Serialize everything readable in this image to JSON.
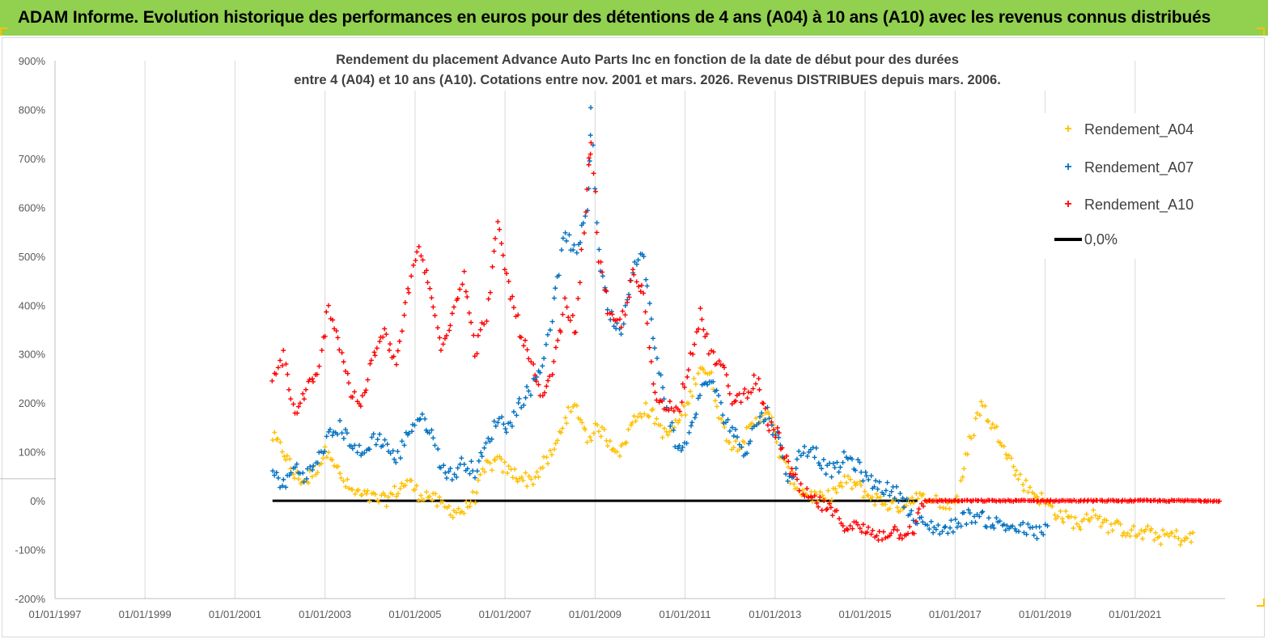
{
  "banner": {
    "title": "ADAM Informe. Evolution historique des performances en euros pour des détentions de 4 ans (A04) à 10 ans (A10) avec les revenus connus distribués"
  },
  "colors": {
    "banner": "#92d050",
    "A04": "#ffc000",
    "A07": "#0070c0",
    "A10": "#ff0000",
    "zero_line": "#000000"
  },
  "chart_data": {
    "type": "scatter",
    "title_line1": "Rendement du placement Advance Auto Parts Inc en fonction de la date de début pour des durées",
    "title_line2": "entre 4 (A04) et 10 ans (A10). Cotations entre nov. 2001 et mars. 2026. Revenus DISTRIBUES depuis mars. 2006.",
    "xlim": [
      "1997-01-01",
      "2023-01-01"
    ],
    "ylim": [
      -200,
      900
    ],
    "y_unit": "%",
    "y_ticks": [
      "900%",
      "800%",
      "700%",
      "600%",
      "500%",
      "400%",
      "300%",
      "200%",
      "100%",
      "0%",
      "-100%",
      "-200%"
    ],
    "y_tick_values": [
      900,
      800,
      700,
      600,
      500,
      400,
      300,
      200,
      100,
      0,
      -100,
      -200
    ],
    "x_ticks": [
      "01/01/1997",
      "01/01/1999",
      "01/01/2001",
      "01/01/2003",
      "01/01/2005",
      "01/01/2007",
      "01/01/2009",
      "01/01/2011",
      "01/01/2013",
      "01/01/2015",
      "01/01/2017",
      "01/01/2019",
      "01/01/2021"
    ],
    "x_tick_dates": [
      "1997-01-01",
      "1999-01-01",
      "2001-01-01",
      "2003-01-01",
      "2005-01-01",
      "2007-01-01",
      "2009-01-01",
      "2011-01-01",
      "2013-01-01",
      "2015-01-01",
      "2017-01-01",
      "2019-01-01",
      "2021-01-01"
    ],
    "grid": "vertical gridlines at x ticks",
    "legend_position": "right",
    "legend": [
      "Rendement_A04",
      "Rendement_A07",
      "Rendement_A10",
      "0,0%"
    ],
    "series": [
      {
        "name": "Rendement_A04",
        "marker": "+",
        "points": [
          [
            "2001-11-01",
            130
          ],
          [
            "2002-02-01",
            100
          ],
          [
            "2002-05-01",
            50
          ],
          [
            "2002-08-01",
            40
          ],
          [
            "2002-11-01",
            70
          ],
          [
            "2003-02-01",
            110
          ],
          [
            "2003-05-01",
            50
          ],
          [
            "2003-08-01",
            20
          ],
          [
            "2003-11-01",
            10
          ],
          [
            "2004-02-01",
            5
          ],
          [
            "2004-05-01",
            0
          ],
          [
            "2004-08-01",
            20
          ],
          [
            "2004-11-01",
            40
          ],
          [
            "2005-02-01",
            15
          ],
          [
            "2005-05-01",
            10
          ],
          [
            "2005-08-01",
            -10
          ],
          [
            "2005-11-01",
            -20
          ],
          [
            "2006-02-01",
            -20
          ],
          [
            "2006-05-01",
            10
          ],
          [
            "2006-08-01",
            70
          ],
          [
            "2006-11-01",
            80
          ],
          [
            "2007-02-01",
            60
          ],
          [
            "2007-05-01",
            50
          ],
          [
            "2007-08-01",
            40
          ],
          [
            "2007-11-01",
            70
          ],
          [
            "2008-02-01",
            100
          ],
          [
            "2008-05-01",
            170
          ],
          [
            "2008-08-01",
            190
          ],
          [
            "2008-11-01",
            130
          ],
          [
            "2009-02-01",
            150
          ],
          [
            "2009-05-01",
            120
          ],
          [
            "2009-08-01",
            100
          ],
          [
            "2009-11-01",
            160
          ],
          [
            "2010-02-01",
            190
          ],
          [
            "2010-05-01",
            170
          ],
          [
            "2010-08-01",
            130
          ],
          [
            "2010-11-01",
            160
          ],
          [
            "2011-02-01",
            200
          ],
          [
            "2011-05-01",
            280
          ],
          [
            "2011-08-01",
            250
          ],
          [
            "2011-11-01",
            150
          ],
          [
            "2012-02-01",
            110
          ],
          [
            "2012-05-01",
            130
          ],
          [
            "2012-08-01",
            160
          ],
          [
            "2012-11-01",
            190
          ],
          [
            "2013-02-01",
            100
          ],
          [
            "2013-05-01",
            50
          ],
          [
            "2013-08-01",
            20
          ],
          [
            "2013-11-01",
            10
          ],
          [
            "2014-02-01",
            0
          ],
          [
            "2014-05-01",
            20
          ],
          [
            "2014-08-01",
            40
          ],
          [
            "2014-11-01",
            30
          ],
          [
            "2015-02-01",
            10
          ],
          [
            "2015-05-01",
            0
          ],
          [
            "2015-08-01",
            -10
          ],
          [
            "2015-11-01",
            -10
          ],
          [
            "2016-02-01",
            10
          ],
          [
            "2016-05-01",
            0
          ],
          [
            "2016-08-01",
            0
          ],
          [
            "2016-11-01",
            -10
          ],
          [
            "2017-02-01",
            10
          ],
          [
            "2017-05-01",
            120
          ],
          [
            "2017-08-01",
            200
          ],
          [
            "2017-11-01",
            150
          ],
          [
            "2018-02-01",
            120
          ],
          [
            "2018-05-01",
            60
          ],
          [
            "2018-08-01",
            30
          ],
          [
            "2018-11-01",
            10
          ],
          [
            "2019-02-01",
            -10
          ],
          [
            "2019-05-01",
            -30
          ],
          [
            "2019-08-01",
            -40
          ],
          [
            "2019-11-01",
            -50
          ],
          [
            "2020-02-01",
            -20
          ],
          [
            "2020-05-01",
            -50
          ],
          [
            "2020-08-01",
            -55
          ],
          [
            "2020-11-01",
            -60
          ],
          [
            "2021-02-01",
            -70
          ],
          [
            "2021-05-01",
            -65
          ],
          [
            "2021-08-01",
            -75
          ],
          [
            "2021-11-01",
            -70
          ],
          [
            "2022-02-01",
            -80
          ],
          [
            "2022-05-01",
            -75
          ]
        ]
      },
      {
        "name": "Rendement_A07",
        "marker": "+",
        "points": [
          [
            "2001-11-01",
            60
          ],
          [
            "2002-02-01",
            30
          ],
          [
            "2002-05-01",
            70
          ],
          [
            "2002-08-01",
            50
          ],
          [
            "2002-11-01",
            80
          ],
          [
            "2003-02-01",
            130
          ],
          [
            "2003-05-01",
            150
          ],
          [
            "2003-08-01",
            120
          ],
          [
            "2003-11-01",
            90
          ],
          [
            "2004-02-01",
            130
          ],
          [
            "2004-05-01",
            120
          ],
          [
            "2004-08-01",
            80
          ],
          [
            "2004-11-01",
            140
          ],
          [
            "2005-02-01",
            170
          ],
          [
            "2005-05-01",
            150
          ],
          [
            "2005-08-01",
            70
          ],
          [
            "2005-11-01",
            50
          ],
          [
            "2006-02-01",
            80
          ],
          [
            "2006-05-01",
            60
          ],
          [
            "2006-08-01",
            110
          ],
          [
            "2006-11-01",
            170
          ],
          [
            "2007-02-01",
            150
          ],
          [
            "2007-05-01",
            200
          ],
          [
            "2007-08-01",
            230
          ],
          [
            "2007-11-01",
            280
          ],
          [
            "2008-02-01",
            400
          ],
          [
            "2008-05-01",
            550
          ],
          [
            "2008-08-01",
            500
          ],
          [
            "2008-11-01",
            600
          ],
          [
            "2008-12-01",
            800
          ],
          [
            "2009-02-01",
            500
          ],
          [
            "2009-05-01",
            380
          ],
          [
            "2009-08-01",
            350
          ],
          [
            "2009-11-01",
            480
          ],
          [
            "2010-02-01",
            500
          ],
          [
            "2010-05-01",
            300
          ],
          [
            "2010-08-01",
            200
          ],
          [
            "2010-11-01",
            100
          ],
          [
            "2011-02-01",
            130
          ],
          [
            "2011-05-01",
            220
          ],
          [
            "2011-08-01",
            250
          ],
          [
            "2011-11-01",
            180
          ],
          [
            "2012-02-01",
            140
          ],
          [
            "2012-05-01",
            100
          ],
          [
            "2012-08-01",
            160
          ],
          [
            "2012-11-01",
            180
          ],
          [
            "2013-02-01",
            120
          ],
          [
            "2013-05-01",
            40
          ],
          [
            "2013-08-01",
            100
          ],
          [
            "2013-11-01",
            110
          ],
          [
            "2014-02-01",
            70
          ],
          [
            "2014-05-01",
            60
          ],
          [
            "2014-08-01",
            90
          ],
          [
            "2014-11-01",
            70
          ],
          [
            "2015-02-01",
            40
          ],
          [
            "2015-05-01",
            30
          ],
          [
            "2015-08-01",
            20
          ],
          [
            "2015-11-01",
            10
          ],
          [
            "2016-02-01",
            -40
          ],
          [
            "2016-05-01",
            -50
          ],
          [
            "2016-08-01",
            -55
          ],
          [
            "2016-11-01",
            -60
          ],
          [
            "2017-02-01",
            -40
          ],
          [
            "2017-05-01",
            -30
          ],
          [
            "2017-08-01",
            -35
          ],
          [
            "2017-11-01",
            -45
          ],
          [
            "2018-02-01",
            -50
          ],
          [
            "2018-05-01",
            -55
          ],
          [
            "2018-08-01",
            -60
          ],
          [
            "2018-11-01",
            -65
          ],
          [
            "2019-02-01",
            -60
          ]
        ]
      },
      {
        "name": "Rendement_A10",
        "marker": "+",
        "points": [
          [
            "2001-11-01",
            240
          ],
          [
            "2002-02-01",
            300
          ],
          [
            "2002-05-01",
            170
          ],
          [
            "2002-08-01",
            230
          ],
          [
            "2002-11-01",
            250
          ],
          [
            "2003-02-01",
            400
          ],
          [
            "2003-05-01",
            320
          ],
          [
            "2003-08-01",
            220
          ],
          [
            "2003-11-01",
            200
          ],
          [
            "2004-02-01",
            300
          ],
          [
            "2004-05-01",
            340
          ],
          [
            "2004-08-01",
            280
          ],
          [
            "2004-11-01",
            420
          ],
          [
            "2005-02-01",
            520
          ],
          [
            "2005-05-01",
            430
          ],
          [
            "2005-08-01",
            320
          ],
          [
            "2005-11-01",
            380
          ],
          [
            "2006-02-01",
            470
          ],
          [
            "2006-05-01",
            300
          ],
          [
            "2006-08-01",
            380
          ],
          [
            "2006-11-01",
            560
          ],
          [
            "2007-02-01",
            440
          ],
          [
            "2007-05-01",
            350
          ],
          [
            "2007-08-01",
            280
          ],
          [
            "2007-11-01",
            200
          ],
          [
            "2008-02-01",
            280
          ],
          [
            "2008-05-01",
            400
          ],
          [
            "2008-08-01",
            350
          ],
          [
            "2008-11-01",
            650
          ],
          [
            "2008-12-01",
            740
          ],
          [
            "2009-02-01",
            500
          ],
          [
            "2009-05-01",
            370
          ],
          [
            "2009-08-01",
            360
          ],
          [
            "2009-11-01",
            460
          ],
          [
            "2010-02-01",
            420
          ],
          [
            "2010-05-01",
            210
          ],
          [
            "2010-08-01",
            200
          ],
          [
            "2010-11-01",
            180
          ],
          [
            "2011-02-01",
            280
          ],
          [
            "2011-05-01",
            380
          ],
          [
            "2011-08-01",
            300
          ],
          [
            "2011-11-01",
            270
          ],
          [
            "2012-02-01",
            200
          ],
          [
            "2012-05-01",
            220
          ],
          [
            "2012-08-01",
            250
          ],
          [
            "2012-11-01",
            160
          ],
          [
            "2013-02-01",
            130
          ],
          [
            "2013-05-01",
            60
          ],
          [
            "2013-08-01",
            20
          ],
          [
            "2013-11-01",
            0
          ],
          [
            "2014-02-01",
            -10
          ],
          [
            "2014-05-01",
            -30
          ],
          [
            "2014-08-01",
            -50
          ],
          [
            "2014-11-01",
            -55
          ],
          [
            "2015-02-01",
            -65
          ],
          [
            "2015-05-01",
            -70
          ],
          [
            "2015-08-01",
            -60
          ],
          [
            "2015-11-01",
            -65
          ],
          [
            "2016-02-01",
            -55
          ],
          [
            "2016-05-01",
            0
          ],
          [
            "2017-05-01",
            0
          ],
          [
            "2018-05-01",
            0
          ],
          [
            "2019-05-01",
            0
          ],
          [
            "2020-05-01",
            0
          ],
          [
            "2021-05-01",
            0
          ],
          [
            "2022-12-01",
            0
          ]
        ]
      },
      {
        "name": "0,0%",
        "marker": "line",
        "points": [
          [
            "2001-11-01",
            0
          ],
          [
            "2016-03-01",
            0
          ]
        ]
      }
    ]
  }
}
